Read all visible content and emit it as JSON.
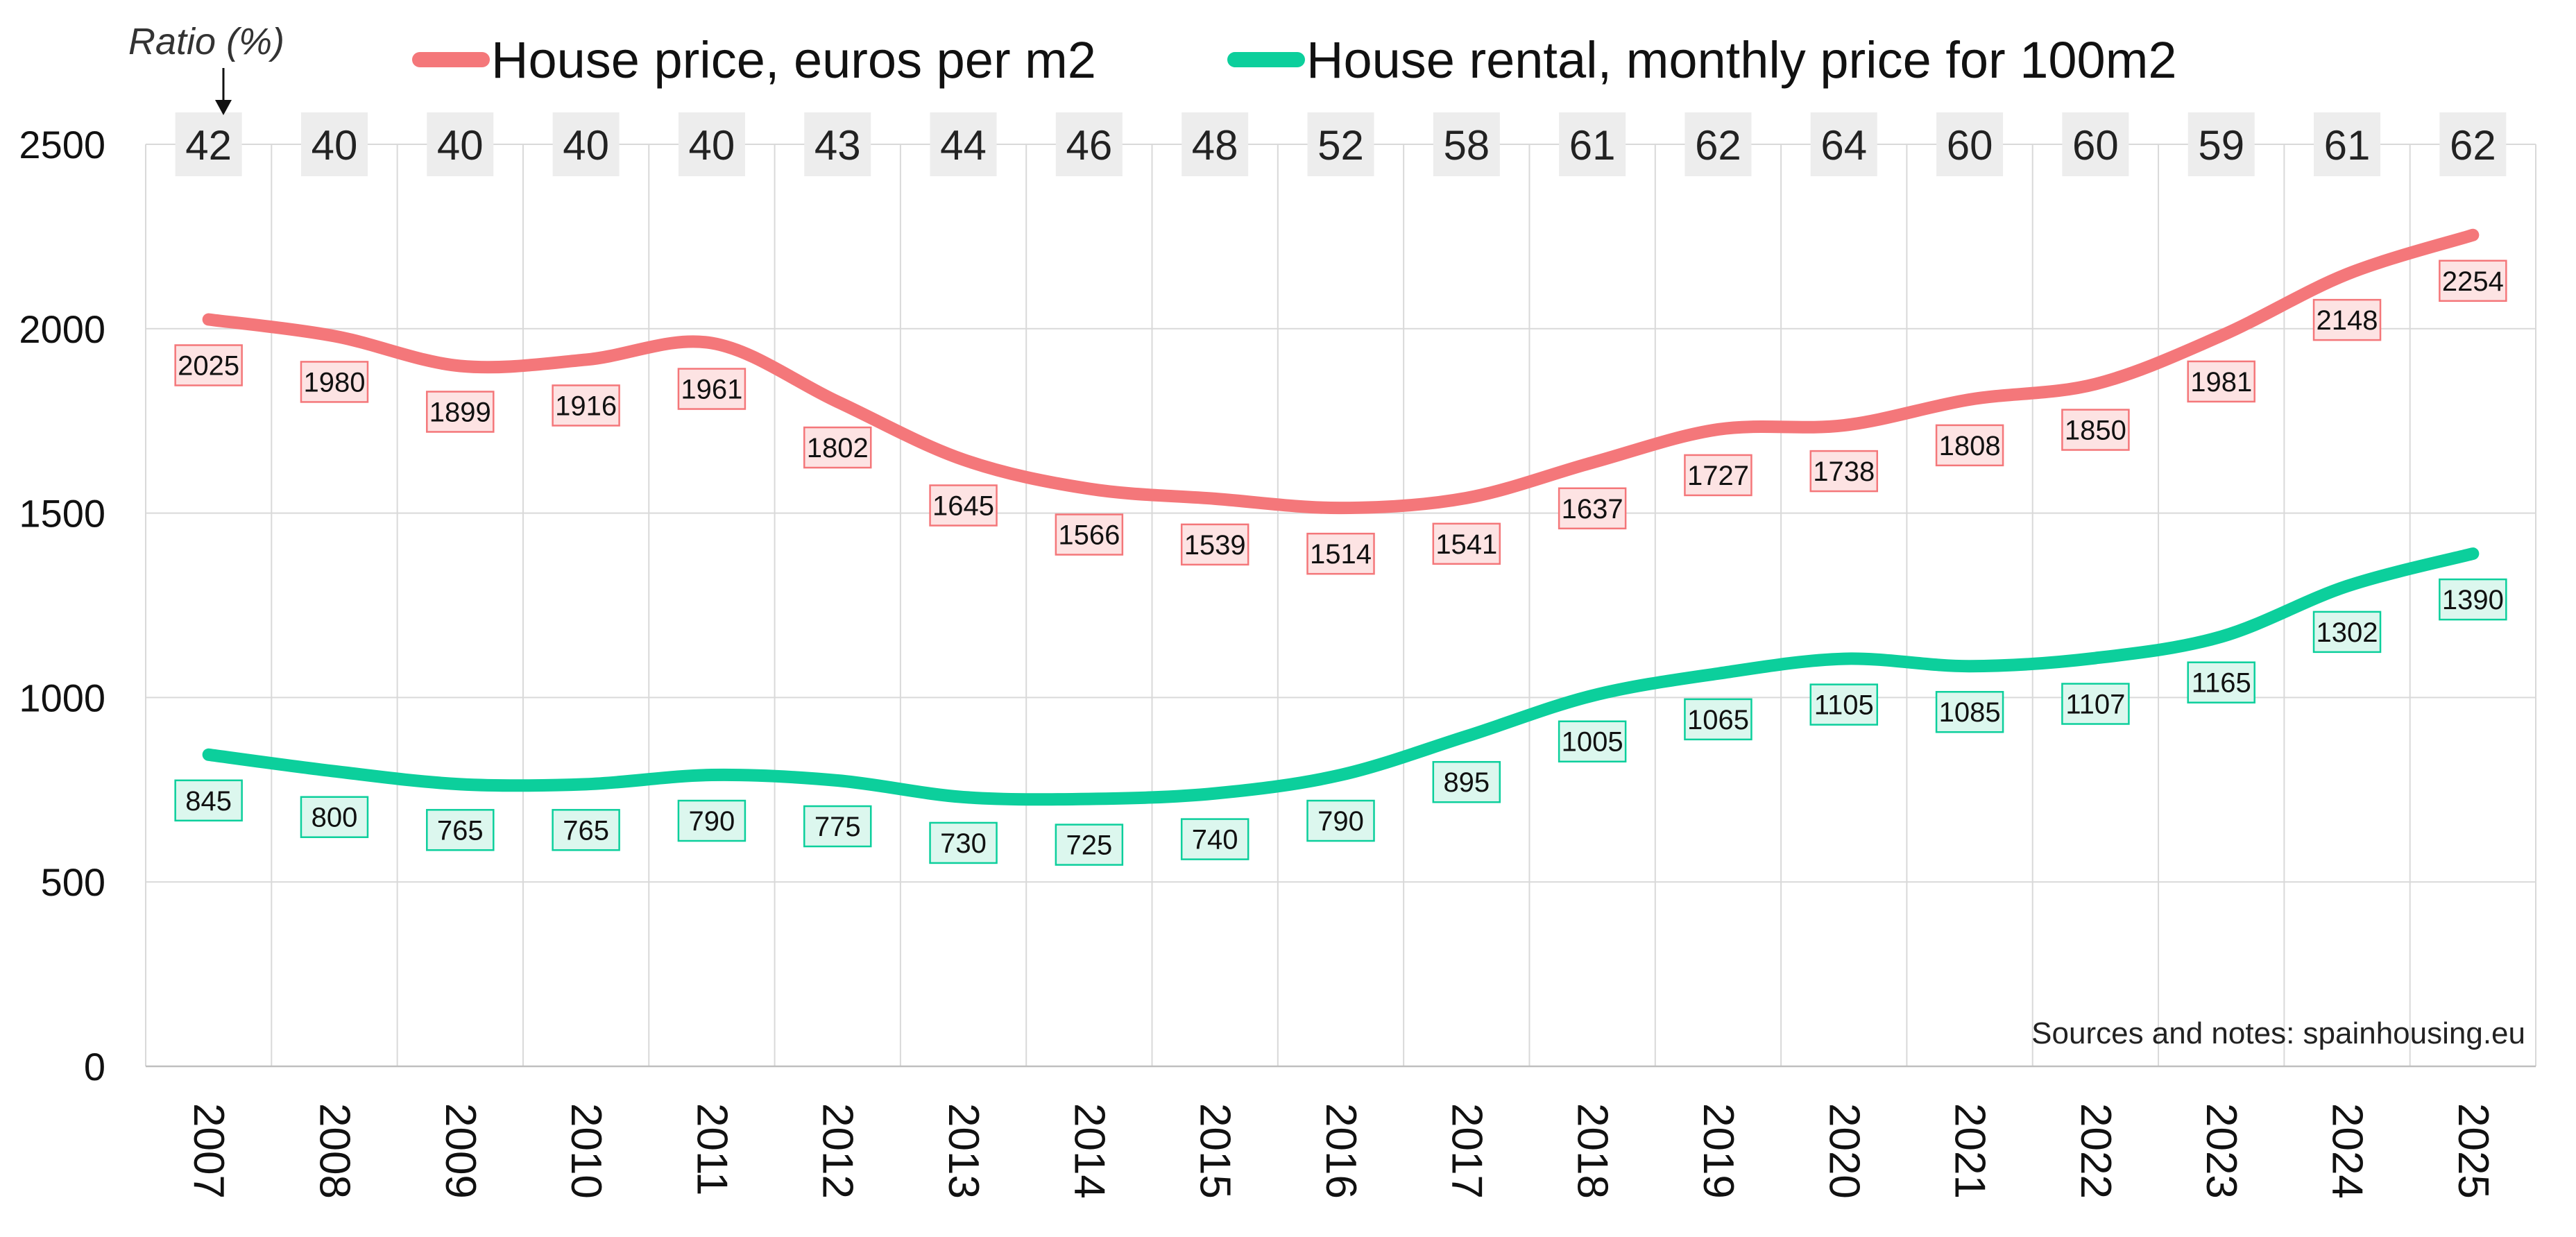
{
  "chart_data": {
    "type": "line",
    "x": [
      "2007",
      "2008",
      "2009",
      "2010",
      "2011",
      "2012",
      "2013",
      "2014",
      "2015",
      "2016",
      "2017",
      "2018",
      "2019",
      "2020",
      "2021",
      "2022",
      "2023",
      "2024",
      "2025"
    ],
    "series": [
      {
        "name": "House price, euros per m2",
        "color": "#f4777a",
        "label_fill": "#fde3e3",
        "values": [
          2025,
          1980,
          1899,
          1916,
          1961,
          1802,
          1645,
          1566,
          1539,
          1514,
          1541,
          1637,
          1727,
          1738,
          1808,
          1850,
          1981,
          2148,
          2254
        ]
      },
      {
        "name": "House rental, monthly price for 100m2",
        "color": "#0ccf9c",
        "label_fill": "#dcf7ee",
        "values": [
          845,
          800,
          765,
          765,
          790,
          775,
          730,
          725,
          740,
          790,
          895,
          1005,
          1065,
          1105,
          1085,
          1107,
          1165,
          1302,
          1390
        ]
      }
    ],
    "ratio": {
      "title": "Ratio (%)",
      "values": [
        42,
        40,
        40,
        40,
        40,
        43,
        44,
        46,
        48,
        52,
        58,
        61,
        62,
        64,
        60,
        60,
        59,
        61,
        62
      ]
    },
    "yticks": [
      0,
      500,
      1000,
      1500,
      2000,
      2500
    ],
    "ylim": [
      0,
      2500
    ],
    "grid": true,
    "legend_position": "top",
    "source_note": "Sources and notes: spainhousing.eu"
  }
}
